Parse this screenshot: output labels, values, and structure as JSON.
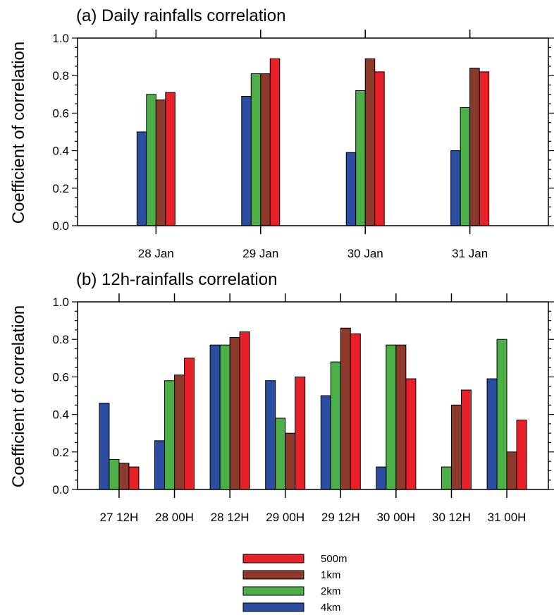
{
  "chart_data": [
    {
      "type": "bar",
      "title": "(a) Daily rainfalls correlation",
      "ylabel": "Coefficient of correlation",
      "xlabel": "",
      "ylim": [
        0,
        1.0
      ],
      "yticks": [
        "0.0",
        "0.2",
        "0.4",
        "0.6",
        "0.8",
        "1.0"
      ],
      "categories": [
        "28 Jan",
        "29 Jan",
        "30 Jan",
        "31 Jan"
      ],
      "series": [
        {
          "name": "4km",
          "color": "#2b4ea0",
          "values": [
            0.5,
            0.69,
            0.39,
            0.4
          ]
        },
        {
          "name": "2km",
          "color": "#4caf48",
          "values": [
            0.7,
            0.81,
            0.72,
            0.63
          ]
        },
        {
          "name": "1km",
          "color": "#8b3a2b",
          "values": [
            0.67,
            0.81,
            0.89,
            0.84
          ]
        },
        {
          "name": "500m",
          "color": "#e8202a",
          "values": [
            0.71,
            0.89,
            0.82,
            0.82
          ]
        }
      ]
    },
    {
      "type": "bar",
      "title": "(b) 12h-rainfalls correlation",
      "ylabel": "Coefficient of correlation",
      "xlabel": "",
      "ylim": [
        0,
        1.0
      ],
      "yticks": [
        "0.0",
        "0.2",
        "0.4",
        "0.6",
        "0.8",
        "1.0"
      ],
      "categories": [
        "27 12H",
        "28 00H",
        "28 12H",
        "29 00H",
        "29 12H",
        "30 00H",
        "30 12H",
        "31 00H"
      ],
      "series": [
        {
          "name": "4km",
          "color": "#2b4ea0",
          "values": [
            0.46,
            0.26,
            0.77,
            0.58,
            0.5,
            0.12,
            0.0,
            0.59
          ]
        },
        {
          "name": "2km",
          "color": "#4caf48",
          "values": [
            0.16,
            0.58,
            0.77,
            0.38,
            0.68,
            0.77,
            0.12,
            0.8
          ]
        },
        {
          "name": "1km",
          "color": "#8b3a2b",
          "values": [
            0.14,
            0.61,
            0.81,
            0.3,
            0.86,
            0.77,
            0.45,
            0.2
          ]
        },
        {
          "name": "500m",
          "color": "#e8202a",
          "values": [
            0.12,
            0.7,
            0.84,
            0.6,
            0.83,
            0.59,
            0.53,
            0.37
          ]
        }
      ]
    }
  ],
  "legend": {
    "placement": "bottom-center",
    "order": [
      "500m",
      "1km",
      "2km",
      "4km"
    ]
  }
}
